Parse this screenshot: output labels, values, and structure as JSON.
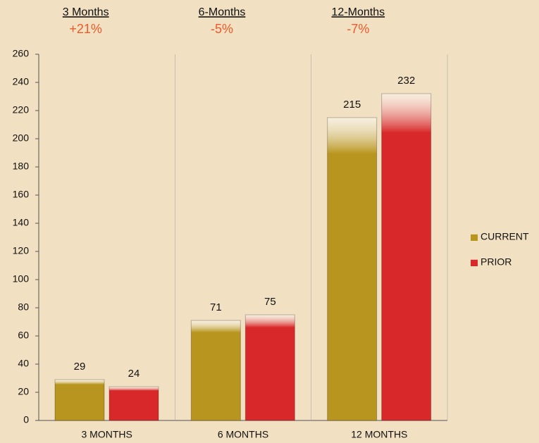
{
  "chart_data": {
    "type": "bar",
    "annotations": [
      {
        "title": "3 Months",
        "change": "+21%"
      },
      {
        "title": "6-Months",
        "change": "-5%"
      },
      {
        "title": "12-Months",
        "change": "-7%"
      }
    ],
    "categories": [
      "3 MONTHS",
      "6 MONTHS",
      "12 MONTHS"
    ],
    "series": [
      {
        "name": "CURRENT",
        "color": "#b8951e",
        "values": [
          29,
          71,
          215
        ]
      },
      {
        "name": "PRIOR",
        "color": "#d8282a",
        "values": [
          24,
          75,
          232
        ]
      }
    ],
    "ylim": [
      0,
      260
    ],
    "yticks": [
      0,
      20,
      40,
      60,
      80,
      100,
      120,
      140,
      160,
      180,
      200,
      220,
      240,
      260
    ],
    "legend": "right"
  }
}
